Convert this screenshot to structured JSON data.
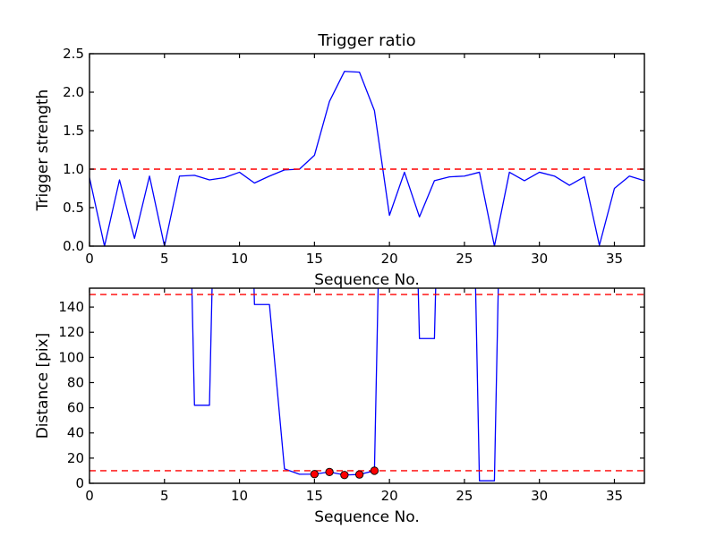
{
  "figure": {
    "background": "#ffffff",
    "line_color": "#0000ff",
    "threshold_color": "#ff0000",
    "marker_face_color": "#ff0000",
    "marker_edge_color": "#000000",
    "axis_color": "#000000"
  },
  "chart_data": [
    {
      "type": "line",
      "title": "Trigger ratio",
      "xlabel": "Sequence No.",
      "ylabel": "Trigger strength",
      "xlim": [
        0,
        37
      ],
      "ylim": [
        0,
        2.5
      ],
      "grid": false,
      "legend": null,
      "xticks": [
        0,
        5,
        10,
        15,
        20,
        25,
        30,
        35
      ],
      "xtick_labels": [
        "0",
        "5",
        "10",
        "15",
        "20",
        "25",
        "30",
        "35"
      ],
      "yticks": [
        0.0,
        0.5,
        1.0,
        1.5,
        2.0,
        2.5
      ],
      "ytick_labels": [
        "0.0",
        "0.5",
        "1.0",
        "1.5",
        "2.0",
        "2.5"
      ],
      "x": [
        0,
        1,
        2,
        3,
        4,
        5,
        6,
        7,
        8,
        9,
        10,
        11,
        12,
        13,
        14,
        15,
        16,
        17,
        18,
        19,
        20,
        21,
        22,
        23,
        24,
        25,
        26,
        27,
        28,
        29,
        30,
        31,
        32,
        33,
        34,
        35,
        36,
        37
      ],
      "series": [
        {
          "name": "Trigger strength",
          "color": "#0000ff",
          "values": [
            0.89,
            0.0,
            0.86,
            0.1,
            0.91,
            0.0,
            0.91,
            0.92,
            0.86,
            0.89,
            0.96,
            0.82,
            0.91,
            0.99,
            1.0,
            1.18,
            1.88,
            2.27,
            2.26,
            1.76,
            0.4,
            0.96,
            0.38,
            0.85,
            0.9,
            0.91,
            0.96,
            0.0,
            0.96,
            0.85,
            0.96,
            0.91,
            0.79,
            0.9,
            0.01,
            0.75,
            0.91,
            0.85
          ]
        }
      ],
      "threshold_lines": [
        {
          "y": 1.0,
          "color": "#ff0000",
          "style": "dashed"
        }
      ],
      "markers": null
    },
    {
      "type": "line",
      "title": "",
      "xlabel": "Sequence No.",
      "ylabel": "Distance [pix]",
      "xlim": [
        0,
        37
      ],
      "ylim": [
        0,
        155
      ],
      "grid": false,
      "legend": null,
      "xticks": [
        0,
        5,
        10,
        15,
        20,
        25,
        30,
        35
      ],
      "xtick_labels": [
        "0",
        "5",
        "10",
        "15",
        "20",
        "25",
        "30",
        "35"
      ],
      "yticks": [
        0,
        20,
        40,
        60,
        80,
        100,
        120,
        140
      ],
      "ytick_labels": [
        "0",
        "20",
        "40",
        "60",
        "80",
        "100",
        "120",
        "140"
      ],
      "x": [
        0,
        1,
        2,
        3,
        4,
        5,
        6,
        7,
        8,
        9,
        10,
        11,
        12,
        13,
        14,
        15,
        16,
        17,
        18,
        19,
        20,
        21,
        22,
        23,
        24,
        25,
        26,
        27,
        28,
        29,
        30,
        31,
        32,
        33,
        34,
        35,
        36,
        37
      ],
      "series": [
        {
          "name": "Distance [pix]",
          "color": "#0000ff",
          "values": [
            600,
            600,
            600,
            600,
            600,
            600,
            600,
            62,
            62,
            600,
            600,
            142,
            142,
            11.5,
            7.2,
            7.3,
            9.0,
            6.6,
            7.0,
            10.0,
            600,
            600,
            115,
            115,
            600,
            600,
            2,
            2,
            600,
            600,
            600,
            600,
            600,
            600,
            600,
            600,
            600,
            600
          ],
          "note": "values shown as 600 are off-scale points clipped at the top of the axes"
        }
      ],
      "threshold_lines": [
        {
          "y": 150,
          "color": "#ff0000",
          "style": "dashed"
        },
        {
          "y": 10,
          "color": "#ff0000",
          "style": "dashed"
        }
      ],
      "markers": {
        "x": [
          15,
          16,
          17,
          18,
          19
        ],
        "y": [
          7.3,
          9.0,
          6.6,
          7.0,
          10.0
        ],
        "style": "filled-circle",
        "face_color": "#ff0000",
        "edge_color": "#000000"
      }
    }
  ]
}
